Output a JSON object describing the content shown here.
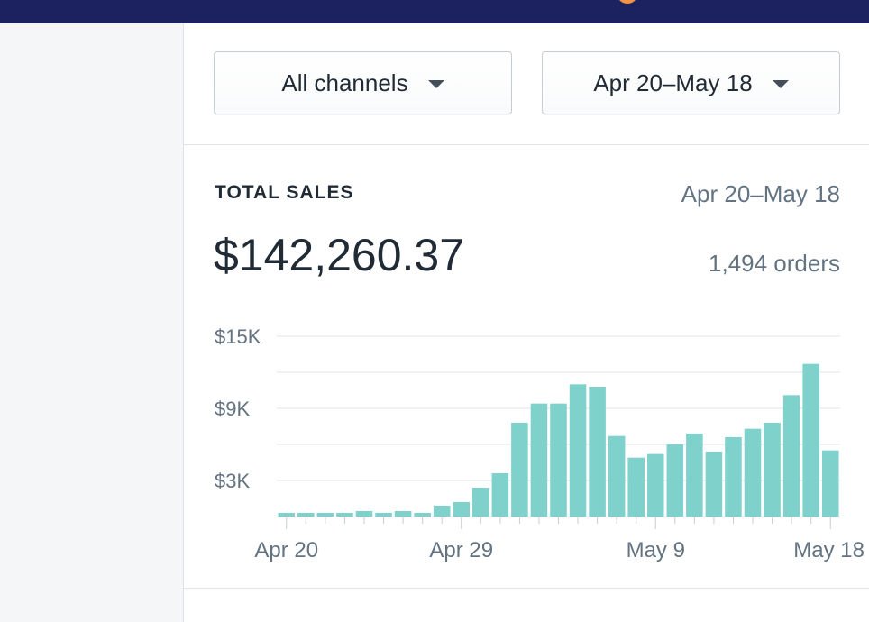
{
  "filters": {
    "channel": "All channels",
    "date_range": "Apr 20–May 18"
  },
  "card": {
    "title": "TOTAL SALES",
    "range": "Apr 20–May 18",
    "total": "$142,260.37",
    "orders": "1,494 orders"
  },
  "colors": {
    "topbar": "#1c2260",
    "bar": "#7fd1cb",
    "text_secondary": "#637381"
  },
  "chart_data": {
    "type": "bar",
    "title": "",
    "xlabel": "",
    "ylabel": "",
    "ylim": [
      0,
      15000
    ],
    "yticks": [
      3000,
      9000,
      15000
    ],
    "ytick_labels": [
      "$3K",
      "$9K",
      "$15K"
    ],
    "grid": true,
    "categories": [
      "Apr 20",
      "Apr 21",
      "Apr 22",
      "Apr 23",
      "Apr 24",
      "Apr 25",
      "Apr 26",
      "Apr 27",
      "Apr 28",
      "Apr 29",
      "Apr 30",
      "May 1",
      "May 2",
      "May 3",
      "May 4",
      "May 5",
      "May 6",
      "May 7",
      "May 8",
      "May 9",
      "May 10",
      "May 11",
      "May 12",
      "May 13",
      "May 14",
      "May 15",
      "May 16",
      "May 17",
      "May 18"
    ],
    "xtick_labels": [
      {
        "index": 0,
        "label": "Apr 20"
      },
      {
        "index": 9,
        "label": "Apr 29"
      },
      {
        "index": 19,
        "label": "May 9"
      },
      {
        "index": 28,
        "label": "May 18"
      }
    ],
    "values": [
      300,
      300,
      300,
      300,
      450,
      300,
      450,
      300,
      900,
      1200,
      2400,
      3600,
      7800,
      9400,
      9400,
      11000,
      10800,
      6700,
      4900,
      5200,
      6000,
      6900,
      5400,
      6600,
      7300,
      7800,
      10100,
      12700,
      5500
    ]
  }
}
